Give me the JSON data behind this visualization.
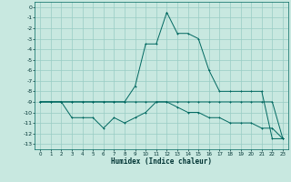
{
  "xlabel": "Humidex (Indice chaleur)",
  "ylabel": "",
  "background_color": "#c8e8e0",
  "grid_color": "#98ccc4",
  "line_color": "#006860",
  "xlim": [
    -0.5,
    23.5
  ],
  "ylim": [
    -13.5,
    0.5
  ],
  "xticks": [
    0,
    1,
    2,
    3,
    4,
    5,
    6,
    7,
    8,
    9,
    10,
    11,
    12,
    13,
    14,
    15,
    16,
    17,
    18,
    19,
    20,
    21,
    22,
    23
  ],
  "yticks": [
    0,
    -1,
    -2,
    -3,
    -4,
    -5,
    -6,
    -7,
    -8,
    -9,
    -10,
    -11,
    -12,
    -13
  ],
  "series1": [
    [
      0,
      -9.0
    ],
    [
      1,
      -9.0
    ],
    [
      2,
      -9.0
    ],
    [
      3,
      -9.0
    ],
    [
      4,
      -9.0
    ],
    [
      5,
      -9.0
    ],
    [
      6,
      -9.0
    ],
    [
      7,
      -9.0
    ],
    [
      8,
      -9.0
    ],
    [
      9,
      -7.5
    ],
    [
      10,
      -3.5
    ],
    [
      11,
      -3.5
    ],
    [
      12,
      -0.5
    ],
    [
      13,
      -2.5
    ],
    [
      14,
      -2.5
    ],
    [
      15,
      -3.0
    ],
    [
      16,
      -6.0
    ],
    [
      17,
      -8.0
    ],
    [
      18,
      -8.0
    ],
    [
      19,
      -8.0
    ],
    [
      20,
      -8.0
    ],
    [
      21,
      -8.0
    ],
    [
      22,
      -12.5
    ],
    [
      23,
      -12.5
    ]
  ],
  "series2": [
    [
      0,
      -9.0
    ],
    [
      1,
      -9.0
    ],
    [
      2,
      -9.0
    ],
    [
      3,
      -10.5
    ],
    [
      4,
      -10.5
    ],
    [
      5,
      -10.5
    ],
    [
      6,
      -11.5
    ],
    [
      7,
      -10.5
    ],
    [
      8,
      -11.0
    ],
    [
      9,
      -10.5
    ],
    [
      10,
      -10.0
    ],
    [
      11,
      -9.0
    ],
    [
      12,
      -9.0
    ],
    [
      13,
      -9.5
    ],
    [
      14,
      -10.0
    ],
    [
      15,
      -10.0
    ],
    [
      16,
      -10.5
    ],
    [
      17,
      -10.5
    ],
    [
      18,
      -11.0
    ],
    [
      19,
      -11.0
    ],
    [
      20,
      -11.0
    ],
    [
      21,
      -11.5
    ],
    [
      22,
      -11.5
    ],
    [
      23,
      -12.5
    ]
  ],
  "series3": [
    [
      0,
      -9.0
    ],
    [
      1,
      -9.0
    ],
    [
      2,
      -9.0
    ],
    [
      3,
      -9.0
    ],
    [
      4,
      -9.0
    ],
    [
      5,
      -9.0
    ],
    [
      6,
      -9.0
    ],
    [
      7,
      -9.0
    ],
    [
      8,
      -9.0
    ],
    [
      9,
      -9.0
    ],
    [
      10,
      -9.0
    ],
    [
      11,
      -9.0
    ],
    [
      12,
      -9.0
    ],
    [
      13,
      -9.0
    ],
    [
      14,
      -9.0
    ],
    [
      15,
      -9.0
    ],
    [
      16,
      -9.0
    ],
    [
      17,
      -9.0
    ],
    [
      18,
      -9.0
    ],
    [
      19,
      -9.0
    ],
    [
      20,
      -9.0
    ],
    [
      21,
      -9.0
    ],
    [
      22,
      -9.0
    ],
    [
      23,
      -12.5
    ]
  ]
}
